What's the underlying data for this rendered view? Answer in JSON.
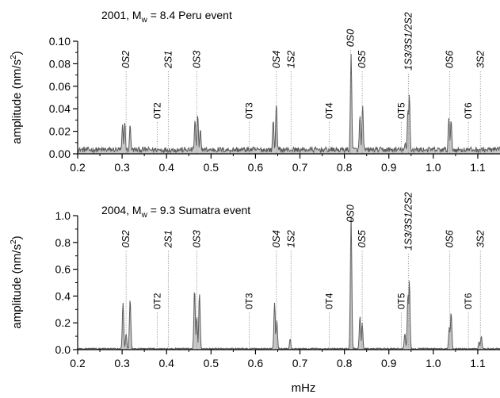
{
  "xlabel": "mHz",
  "chart_data": [
    {
      "type": "area",
      "title_parts": {
        "pre": "2001, M",
        "sub": "w",
        "post": " = 8.4 Peru event"
      },
      "ylabel_parts": {
        "pre": "amplitude (nm/s",
        "sup": "2",
        "post": ")"
      },
      "xlim": [
        0.2,
        1.15
      ],
      "ylim": [
        0,
        0.1
      ],
      "x_ticks": [
        "0.2",
        "0.3",
        "0.4",
        "0.5",
        "0.6",
        "0.7",
        "0.8",
        "0.9",
        "1.0",
        "1.1"
      ],
      "y_ticks": [
        {
          "v": 0.0,
          "label": "0.00"
        },
        {
          "v": 0.02,
          "label": "0.02"
        },
        {
          "v": 0.04,
          "label": "0.04"
        },
        {
          "v": 0.06,
          "label": "0.06"
        },
        {
          "v": 0.08,
          "label": "0.08"
        },
        {
          "v": 0.1,
          "label": "0.10"
        }
      ],
      "noise_level": 0.004,
      "spectrum_peaks": [
        {
          "x": 0.301,
          "y": 0.026
        },
        {
          "x": 0.306,
          "y": 0.028
        },
        {
          "x": 0.318,
          "y": 0.026
        },
        {
          "x": 0.464,
          "y": 0.03
        },
        {
          "x": 0.47,
          "y": 0.035
        },
        {
          "x": 0.476,
          "y": 0.022
        },
        {
          "x": 0.64,
          "y": 0.03
        },
        {
          "x": 0.647,
          "y": 0.045
        },
        {
          "x": 0.815,
          "y": 0.089
        },
        {
          "x": 0.835,
          "y": 0.034
        },
        {
          "x": 0.841,
          "y": 0.043
        },
        {
          "x": 0.937,
          "y": 0.01
        },
        {
          "x": 0.943,
          "y": 0.04
        },
        {
          "x": 0.946,
          "y": 0.053
        },
        {
          "x": 1.035,
          "y": 0.032
        },
        {
          "x": 1.04,
          "y": 0.03
        }
      ],
      "mode_labels": [
        {
          "x": 0.309,
          "label": "0S2",
          "y": 0.076,
          "kind": "spheroidal"
        },
        {
          "x": 0.379,
          "label": "0T2",
          "y": 0.031,
          "kind": "toroidal"
        },
        {
          "x": 0.404,
          "label": "2S1",
          "y": 0.076,
          "kind": "spheroidal"
        },
        {
          "x": 0.468,
          "label": "0S3",
          "y": 0.076,
          "kind": "spheroidal"
        },
        {
          "x": 0.586,
          "label": "0T3",
          "y": 0.031,
          "kind": "toroidal"
        },
        {
          "x": 0.647,
          "label": "0S4",
          "y": 0.076,
          "kind": "spheroidal"
        },
        {
          "x": 0.68,
          "label": "1S2",
          "y": 0.076,
          "kind": "spheroidal"
        },
        {
          "x": 0.766,
          "label": "0T4",
          "y": 0.031,
          "kind": "toroidal"
        },
        {
          "x": 0.814,
          "label": "0S0",
          "y": 0.095,
          "kind": "spheroidal"
        },
        {
          "x": 0.84,
          "label": "0S5",
          "y": 0.076,
          "kind": "spheroidal"
        },
        {
          "x": 0.928,
          "label": "0T5",
          "y": 0.031,
          "kind": "toroidal"
        },
        {
          "x": 0.944,
          "label": "1S3/3S1/2S2",
          "y": 0.074,
          "kind": "spheroidal"
        },
        {
          "x": 1.037,
          "label": "0S6",
          "y": 0.076,
          "kind": "spheroidal"
        },
        {
          "x": 1.079,
          "label": "0T6",
          "y": 0.031,
          "kind": "toroidal"
        },
        {
          "x": 1.106,
          "label": "3S2",
          "y": 0.076,
          "kind": "spheroidal"
        }
      ]
    },
    {
      "type": "area",
      "title_parts": {
        "pre": "2004, M",
        "sub": "w",
        "post": " = 9.3 Sumatra event"
      },
      "ylabel_parts": {
        "pre": "amplitude (nm/s",
        "sup": "2",
        "post": ")"
      },
      "xlim": [
        0.2,
        1.15
      ],
      "ylim": [
        0,
        1.0
      ],
      "x_ticks": [
        "0.2",
        "0.3",
        "0.4",
        "0.5",
        "0.6",
        "0.7",
        "0.8",
        "0.9",
        "1.0",
        "1.1"
      ],
      "y_ticks": [
        {
          "v": 0.0,
          "label": "0.0"
        },
        {
          "v": 0.2,
          "label": "0.2"
        },
        {
          "v": 0.4,
          "label": "0.4"
        },
        {
          "v": 0.6,
          "label": "0.6"
        },
        {
          "v": 0.8,
          "label": "0.8"
        },
        {
          "v": 1.0,
          "label": "1.0"
        }
      ],
      "noise_level": 0.008,
      "spectrum_peaks": [
        {
          "x": 0.302,
          "y": 0.35
        },
        {
          "x": 0.309,
          "y": 0.12
        },
        {
          "x": 0.318,
          "y": 0.38
        },
        {
          "x": 0.463,
          "y": 0.45
        },
        {
          "x": 0.468,
          "y": 0.25
        },
        {
          "x": 0.474,
          "y": 0.42
        },
        {
          "x": 0.643,
          "y": 0.35
        },
        {
          "x": 0.648,
          "y": 0.22
        },
        {
          "x": 0.678,
          "y": 0.08
        },
        {
          "x": 0.815,
          "y": 1.0
        },
        {
          "x": 0.835,
          "y": 0.25
        },
        {
          "x": 0.84,
          "y": 0.2
        },
        {
          "x": 0.936,
          "y": 0.12
        },
        {
          "x": 0.943,
          "y": 0.42
        },
        {
          "x": 0.946,
          "y": 0.52
        },
        {
          "x": 1.036,
          "y": 0.17
        },
        {
          "x": 1.04,
          "y": 0.28
        },
        {
          "x": 1.103,
          "y": 0.06
        },
        {
          "x": 1.108,
          "y": 0.1
        }
      ],
      "mode_labels": [
        {
          "x": 0.309,
          "label": "0S2",
          "y": 0.76,
          "kind": "spheroidal"
        },
        {
          "x": 0.379,
          "label": "0T2",
          "y": 0.3,
          "kind": "toroidal"
        },
        {
          "x": 0.404,
          "label": "2S1",
          "y": 0.76,
          "kind": "spheroidal"
        },
        {
          "x": 0.468,
          "label": "0S3",
          "y": 0.76,
          "kind": "spheroidal"
        },
        {
          "x": 0.586,
          "label": "0T3",
          "y": 0.3,
          "kind": "toroidal"
        },
        {
          "x": 0.647,
          "label": "0S4",
          "y": 0.76,
          "kind": "spheroidal"
        },
        {
          "x": 0.68,
          "label": "1S2",
          "y": 0.76,
          "kind": "spheroidal"
        },
        {
          "x": 0.766,
          "label": "0T4",
          "y": 0.3,
          "kind": "toroidal"
        },
        {
          "x": 0.814,
          "label": "0S0",
          "y": 0.95,
          "kind": "spheroidal"
        },
        {
          "x": 0.84,
          "label": "0S5",
          "y": 0.76,
          "kind": "spheroidal"
        },
        {
          "x": 0.928,
          "label": "0T5",
          "y": 0.3,
          "kind": "toroidal"
        },
        {
          "x": 0.944,
          "label": "1S3/3S1/2S2",
          "y": 0.74,
          "kind": "spheroidal"
        },
        {
          "x": 1.037,
          "label": "0S6",
          "y": 0.76,
          "kind": "spheroidal"
        },
        {
          "x": 1.079,
          "label": "0T6",
          "y": 0.3,
          "kind": "toroidal"
        },
        {
          "x": 1.106,
          "label": "3S2",
          "y": 0.76,
          "kind": "spheroidal"
        }
      ]
    }
  ],
  "colors": {
    "spectrum_line": "#5a5a5a",
    "spectrum_fill": "#c8c8c8",
    "marker_line": "#9a9a9a",
    "axis": "#000000"
  }
}
